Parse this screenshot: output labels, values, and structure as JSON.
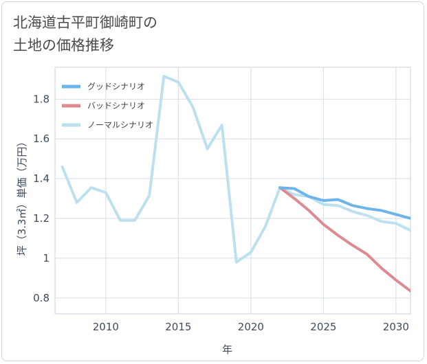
{
  "title_lines": [
    "北海道古平町御崎町の",
    "土地の価格推移"
  ],
  "chart_data": {
    "type": "line",
    "xlabel": "年",
    "ylabel": "坪（3.3㎡）単価（万円）",
    "xlim": [
      2006.5,
      2031
    ],
    "ylim": [
      0.72,
      1.96
    ],
    "xticks": [
      2010,
      2015,
      2020,
      2025,
      2030
    ],
    "xtick_labels": [
      "2010",
      "2015",
      "2020",
      "2025",
      "2030"
    ],
    "yticks": [
      0.8,
      1,
      1.2,
      1.4,
      1.6,
      1.8
    ],
    "ytick_labels": [
      "0.8",
      "1",
      "1.2",
      "1.4",
      "1.6",
      "1.8"
    ],
    "grid": true,
    "legend_position": "top-left",
    "series": [
      {
        "name": "グッドシナリオ",
        "color": "#6cb4ea",
        "x": [
          2022,
          2023,
          2024,
          2025,
          2026,
          2027,
          2028,
          2029,
          2030,
          2031
        ],
        "values": [
          1.355,
          1.35,
          1.31,
          1.29,
          1.295,
          1.265,
          1.25,
          1.24,
          1.22,
          1.2
        ]
      },
      {
        "name": "バッドシナリオ",
        "color": "#de8a92",
        "x": [
          2022,
          2023,
          2024,
          2025,
          2026,
          2027,
          2028,
          2029,
          2030,
          2031
        ],
        "values": [
          1.355,
          1.3,
          1.24,
          1.17,
          1.115,
          1.065,
          1.02,
          0.95,
          0.89,
          0.835
        ]
      },
      {
        "name": "ノーマルシナリオ",
        "color": "#bde0ef",
        "x": [
          2007,
          2008,
          2009,
          2010,
          2011,
          2012,
          2013,
          2014,
          2015,
          2016,
          2017,
          2018,
          2019,
          2020,
          2021,
          2022,
          2023,
          2024,
          2025,
          2026,
          2027,
          2028,
          2029,
          2030,
          2031
        ],
        "values": [
          1.46,
          1.28,
          1.355,
          1.33,
          1.19,
          1.19,
          1.315,
          1.915,
          1.885,
          1.76,
          1.55,
          1.67,
          0.98,
          1.03,
          1.16,
          1.355,
          1.32,
          1.31,
          1.27,
          1.265,
          1.235,
          1.215,
          1.185,
          1.175,
          1.14
        ]
      }
    ]
  }
}
